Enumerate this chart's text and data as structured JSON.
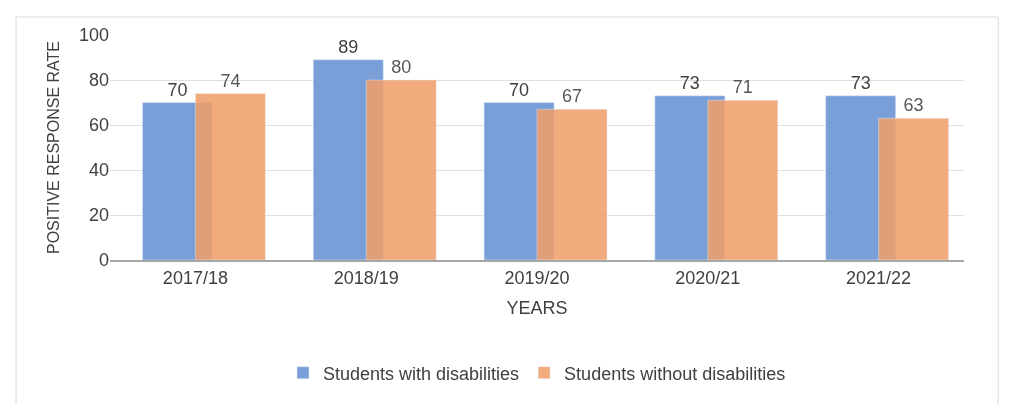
{
  "chart_data": {
    "type": "bar",
    "categories": [
      "2017/18",
      "2018/19",
      "2019/20",
      "2020/21",
      "2021/22"
    ],
    "series": [
      {
        "name": "Students with disabilities",
        "color": "#7a9fd8",
        "values": [
          70,
          89,
          70,
          73,
          73
        ]
      },
      {
        "name": "Students without disabilities",
        "color": "#f0a06c",
        "values": [
          74,
          80,
          67,
          71,
          63
        ]
      }
    ],
    "xlabel": "YEARS",
    "ylabel": "POSITIVE RESPONSE RATE",
    "ylim": [
      0,
      100
    ],
    "yticks": [
      0,
      20,
      40,
      60,
      80,
      100
    ],
    "grid": "y",
    "legend": "bottom",
    "data_labels": true
  }
}
